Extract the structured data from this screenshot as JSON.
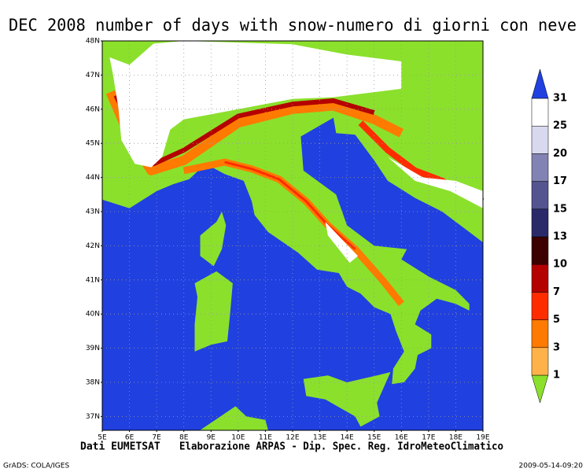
{
  "title": "DEC 2008 number of days with snow-numero di giorni con neve",
  "lat_labels": [
    "48N",
    "47N",
    "46N",
    "45N",
    "44N",
    "43N",
    "42N",
    "41N",
    "40N",
    "39N",
    "38N",
    "37N"
  ],
  "lon_labels": [
    "5E",
    "6E",
    "7E",
    "8E",
    "9E",
    "10E",
    "11E",
    "12E",
    "13E",
    "14E",
    "15E",
    "16E",
    "17E",
    "18E",
    "19E"
  ],
  "colorbar": {
    "levels": [
      1,
      3,
      5,
      7,
      10,
      13,
      15,
      17,
      20,
      25,
      31
    ],
    "colors": [
      "#ffb24a",
      "#ff7a00",
      "#ff2c00",
      "#b40000",
      "#3c0000",
      "#2a2a6a",
      "#545490",
      "#8282b4",
      "#d8d8ee",
      "#ffffff"
    ],
    "below_color": "#8be02c",
    "above_color": "#2040e0"
  },
  "footer": {
    "source": "Dati EUMETSAT",
    "processing": "Elaborazione ARPAS - Dip. Spec. Reg. IdroMeteoClimatico"
  },
  "credit": "GrADS: COLA/IGES",
  "timestamp": "2009-05-14-09:20"
}
